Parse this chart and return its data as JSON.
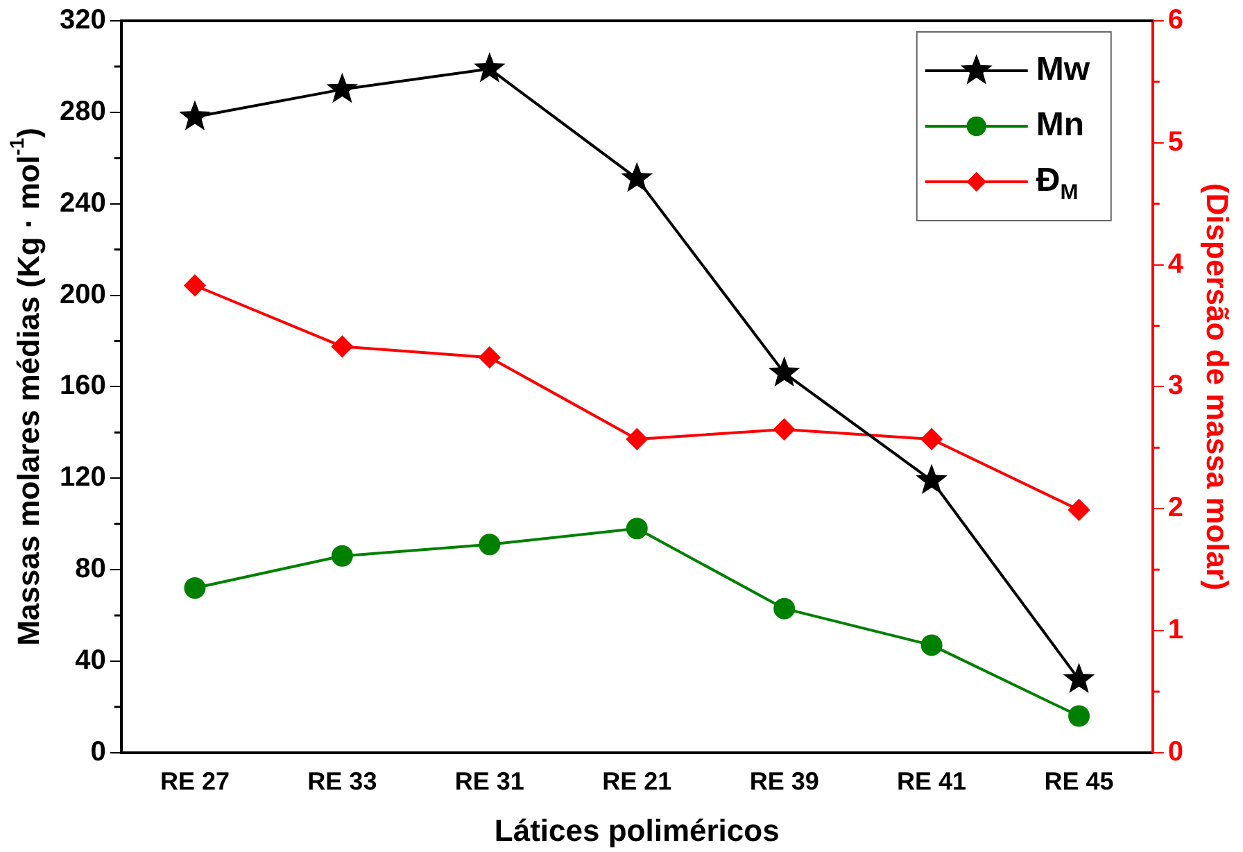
{
  "chart_data": {
    "type": "line",
    "xlabel": "Látices poliméricos",
    "ylabel": "Massas molares médias (Kg · mol$^{-1}$)",
    "y2label": "(Dispersão de massa molar)",
    "categories": [
      "RE 27",
      "RE 33",
      "RE 31",
      "RE 21",
      "RE 39",
      "RE 41",
      "RE 45"
    ],
    "series": [
      {
        "name": "Mw",
        "color": "#000000",
        "marker": "star",
        "values": [
          278,
          290,
          299,
          251,
          166,
          119,
          32
        ]
      },
      {
        "name": "Mn",
        "color": "#008000",
        "marker": "circle",
        "values": [
          72,
          86,
          91,
          98,
          63,
          47,
          16
        ]
      },
      {
        "name": "Đ$_{M}$",
        "color": "#ff0000",
        "marker": "diamond",
        "axis": "y2",
        "values": [
          3.83,
          3.33,
          3.24,
          2.57,
          2.65,
          2.57,
          1.99
        ]
      }
    ],
    "ylim": [
      0,
      320
    ],
    "yticks": [
      0,
      40,
      80,
      120,
      160,
      200,
      240,
      280,
      320
    ],
    "y2lim": [
      0,
      6
    ],
    "y2ticks": [
      0,
      1,
      2,
      3,
      4,
      5,
      6
    ],
    "grid": false,
    "legend": "top right",
    "line_style": "solid"
  }
}
